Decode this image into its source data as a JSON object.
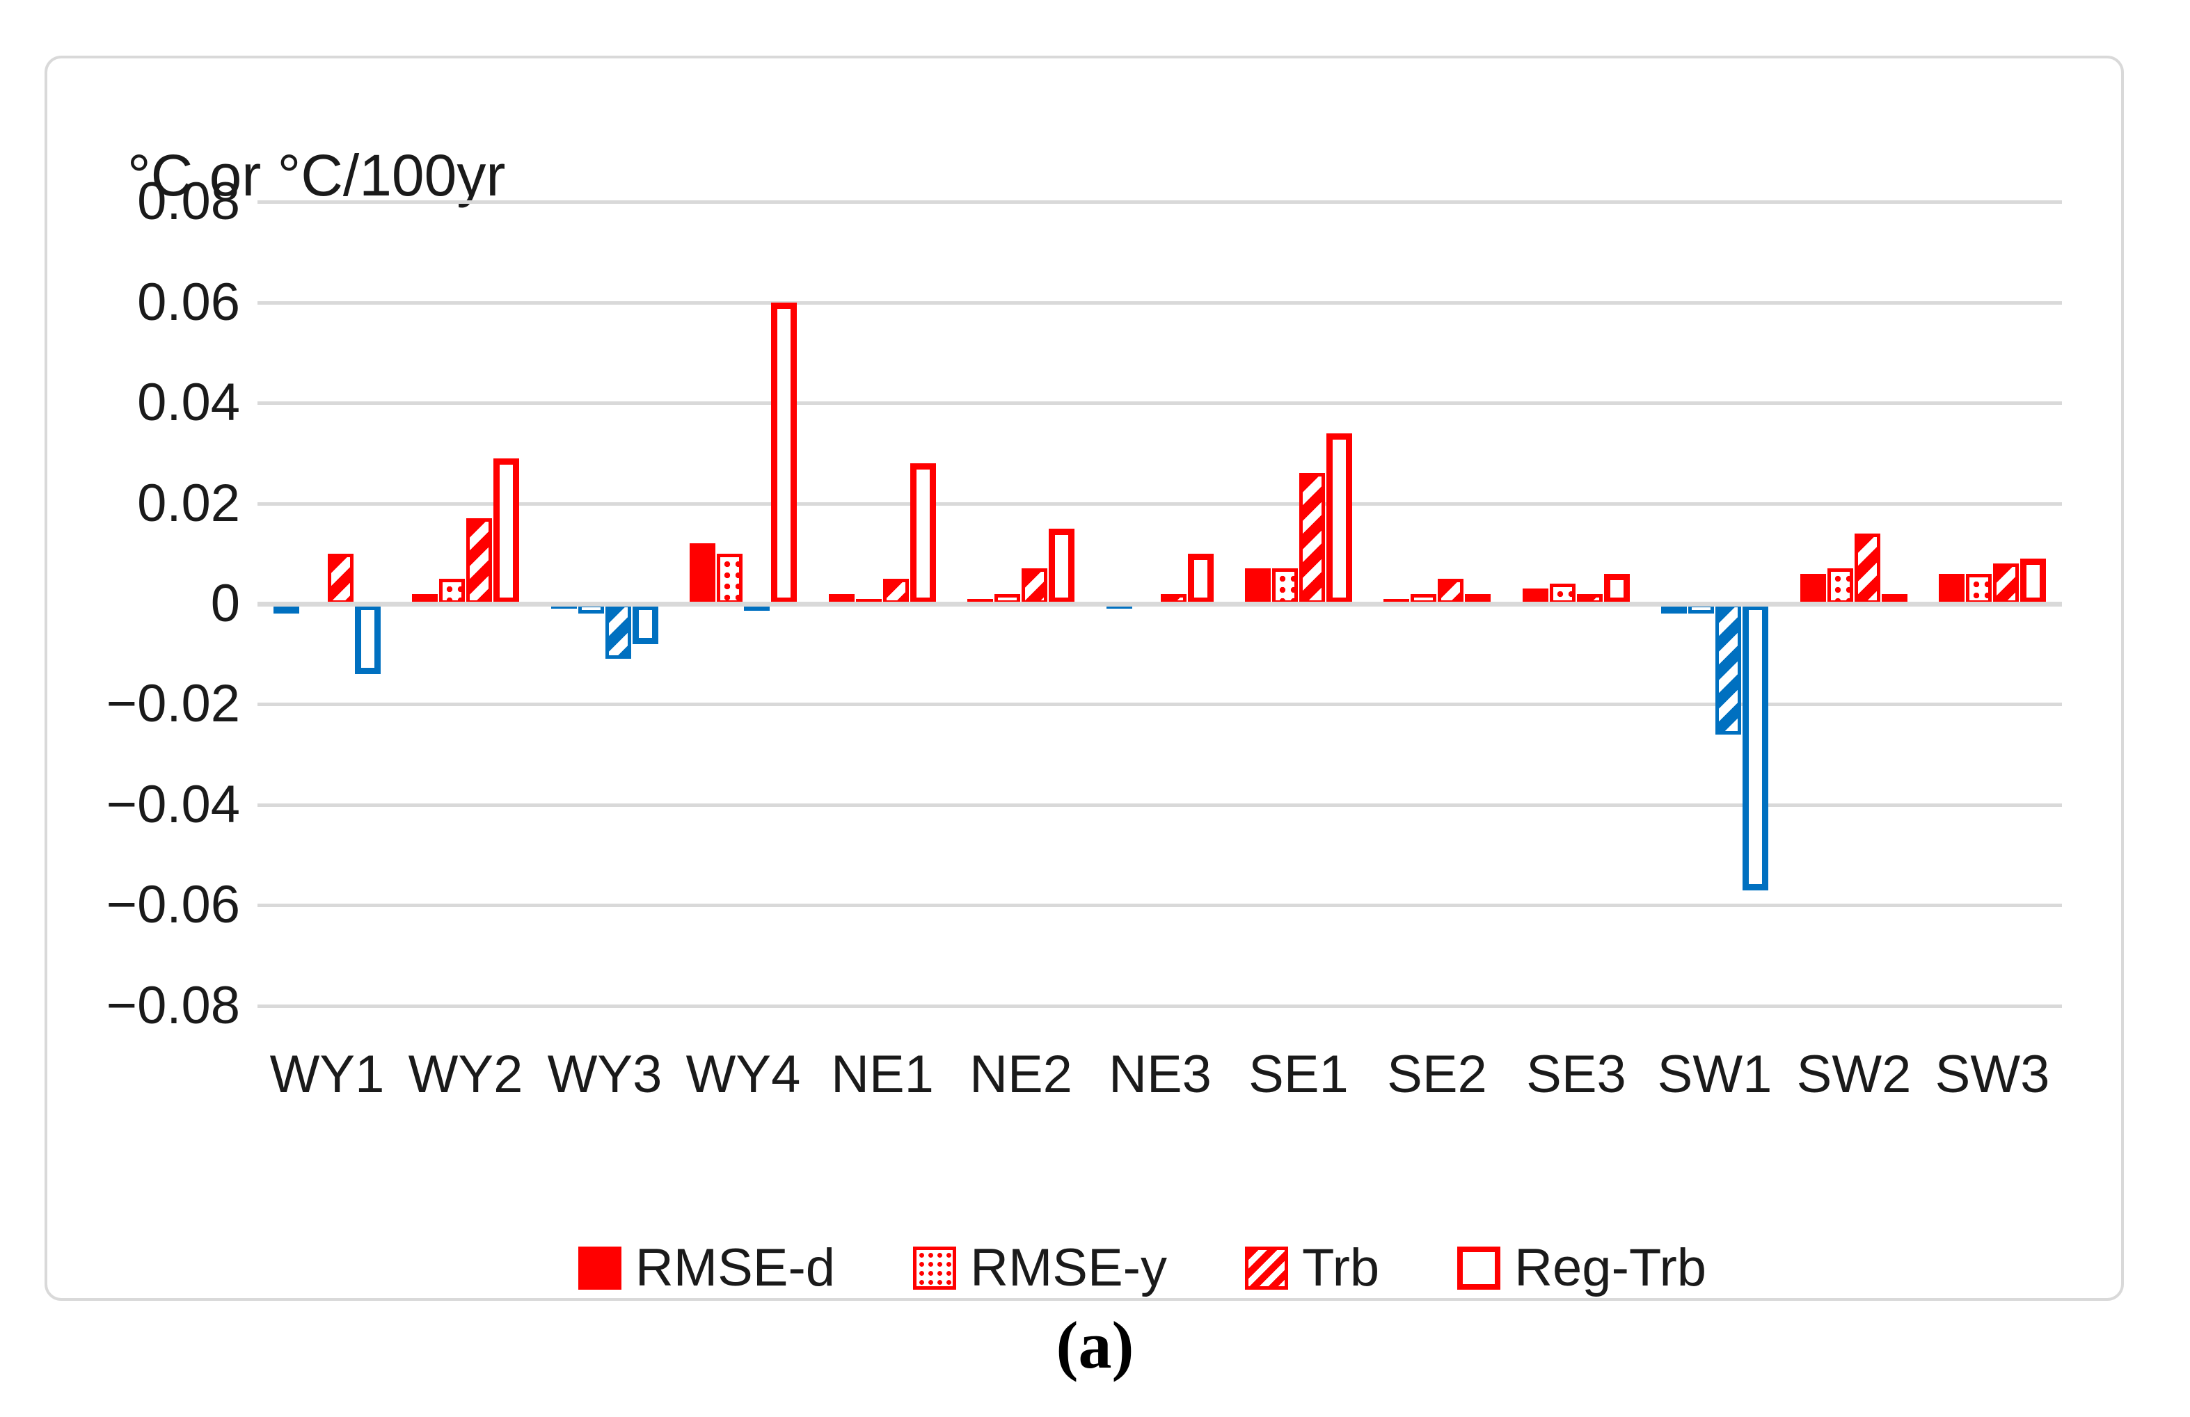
{
  "figure": {
    "caption": "(a)"
  },
  "chart_data": {
    "type": "bar",
    "title": "°C or °C/100yr",
    "xlabel": "",
    "ylabel": "°C or °C/100yr",
    "categories": [
      "WY1",
      "WY2",
      "WY3",
      "WY4",
      "NE1",
      "NE2",
      "NE3",
      "SE1",
      "SE2",
      "SE3",
      "SW1",
      "SW2",
      "SW3"
    ],
    "series": [
      {
        "name": "RMSE-d",
        "pattern": "solid",
        "values": [
          -0.002,
          0.002,
          -0.001,
          0.012,
          0.002,
          0.001,
          -0.001,
          0.007,
          0.001,
          0.003,
          -0.002,
          0.006,
          0.006
        ]
      },
      {
        "name": "RMSE-y",
        "pattern": "dots",
        "values": [
          0.0,
          0.005,
          -0.002,
          0.01,
          0.001,
          0.002,
          0.0,
          0.007,
          0.002,
          0.004,
          -0.002,
          0.007,
          0.006
        ]
      },
      {
        "name": "Trb",
        "pattern": "hatch",
        "values": [
          0.01,
          0.017,
          -0.011,
          -0.001,
          0.005,
          0.007,
          0.002,
          0.026,
          0.005,
          0.002,
          -0.026,
          0.014,
          0.008
        ]
      },
      {
        "name": "Reg-Trb",
        "pattern": "outline",
        "values": [
          -0.014,
          0.029,
          -0.008,
          0.06,
          0.028,
          0.015,
          0.01,
          0.034,
          0.002,
          0.006,
          -0.057,
          0.002,
          0.009
        ]
      }
    ],
    "ylim": [
      -0.08,
      0.08
    ],
    "ytick_step": 0.02,
    "ytick_labels": [
      "0.08",
      "0.06",
      "0.04",
      "0.02",
      "0",
      "−0.02",
      "−0.04",
      "−0.06",
      "−0.08"
    ],
    "grid": true,
    "legend_position": "bottom",
    "colors": {
      "positive": "#FF0000",
      "negative": "#0070C0",
      "gridline": "#D9D9D9",
      "text": "#1A1A1A"
    }
  }
}
